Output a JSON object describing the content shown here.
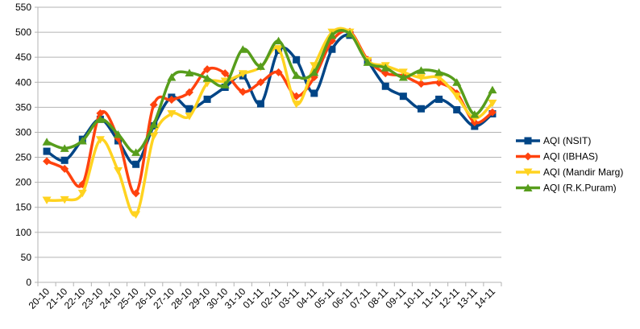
{
  "chart_data": {
    "type": "line",
    "title": "",
    "xlabel": "",
    "ylabel": "",
    "ylim": [
      0,
      550
    ],
    "yticks": [
      0,
      50,
      100,
      150,
      200,
      250,
      300,
      350,
      400,
      450,
      500,
      550
    ],
    "grid": "horizontal",
    "legend_position": "right",
    "smooth": true,
    "categories": [
      "20-10",
      "21-10",
      "22-10",
      "23-10",
      "24-10",
      "25-10",
      "26-10",
      "27-10",
      "28-10",
      "29-10",
      "30-10",
      "31-10",
      "01-11",
      "02-11",
      "03-11",
      "04-11",
      "05-11",
      "06-11",
      "07-11",
      "08-11",
      "09-11",
      "10-11",
      "11-11",
      "12-11",
      "13-11",
      "14-11"
    ],
    "series": [
      {
        "name": "AQI (NSIT)",
        "color": "#004586",
        "marker": "square",
        "values": [
          262,
          244,
          286,
          326,
          283,
          236,
          313,
          370,
          347,
          366,
          390,
          413,
          357,
          464,
          445,
          378,
          466,
          494,
          443,
          392,
          372,
          347,
          366,
          345,
          312,
          337
        ]
      },
      {
        "name": "AQI (IBHAS)",
        "color": "#ff420e",
        "marker": "diamond",
        "values": [
          242,
          227,
          196,
          338,
          288,
          178,
          355,
          365,
          380,
          426,
          418,
          381,
          400,
          420,
          372,
          410,
          483,
          501,
          445,
          418,
          413,
          397,
          399,
          378,
          320,
          340
        ]
      },
      {
        "name": "AQI (Mandir Marg)",
        "color": "#ffd320",
        "marker": "triangle-down",
        "values": [
          164,
          165,
          178,
          285,
          223,
          135,
          292,
          337,
          332,
          398,
          402,
          417,
          430,
          467,
          356,
          433,
          500,
          500,
          443,
          433,
          420,
          409,
          409,
          372,
          328,
          358
        ]
      },
      {
        "name": "AQI (R.K.Puram)",
        "color": "#579d1c",
        "marker": "triangle-up",
        "values": [
          281,
          268,
          283,
          326,
          296,
          260,
          316,
          410,
          419,
          408,
          395,
          466,
          432,
          483,
          414,
          420,
          494,
          497,
          440,
          429,
          410,
          424,
          420,
          400,
          336,
          385
        ]
      }
    ]
  }
}
